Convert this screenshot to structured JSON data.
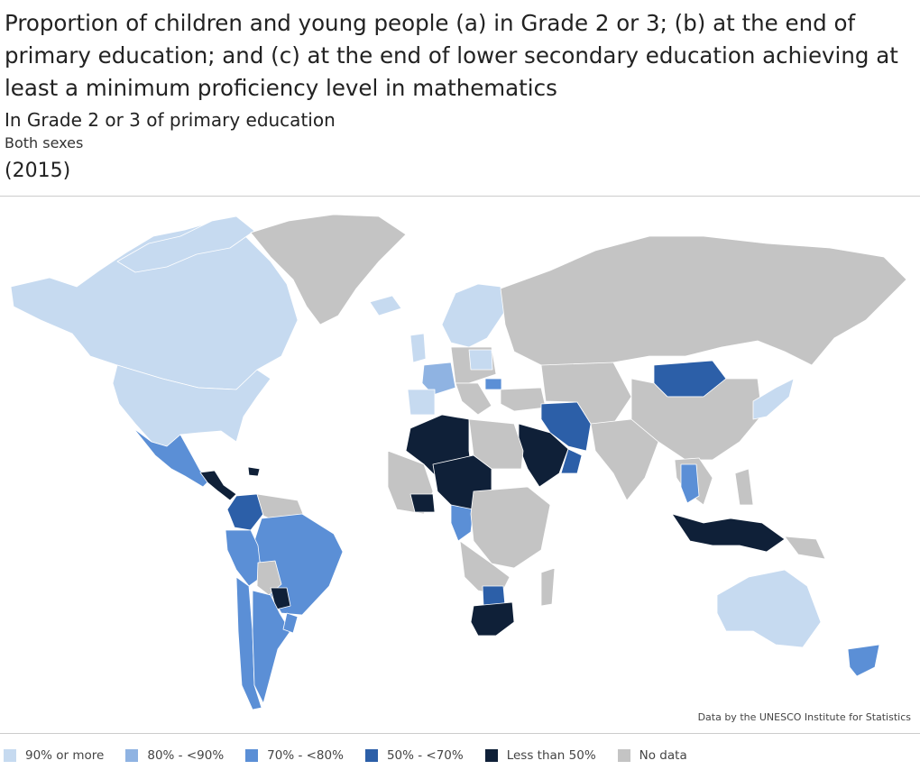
{
  "header": {
    "title": "Proportion of children and young people (a) in Grade 2 or 3; (b) at the end of primary education; and (c) at the end of lower secondary education achieving at least a minimum proficiency level in mathematics",
    "subtitle": "In Grade 2 or 3 of primary education",
    "sex": "Both sexes",
    "year": "(2015)"
  },
  "map": {
    "colors": {
      "ocean": "#ffffff",
      "border": "#ffffff",
      "c90": "#c6daf0",
      "c80": "#8fb3e2",
      "c70": "#5b8fd6",
      "c50": "#2c5fa8",
      "c0": "#0f2038",
      "nodata": "#c4c4c4"
    },
    "credit": "Data by the UNESCO Institute for Statistics"
  },
  "legend": [
    {
      "label": "90% or more",
      "color": "#c6daf0"
    },
    {
      "label": "80% - <90%",
      "color": "#8fb3e2"
    },
    {
      "label": "70% - <80%",
      "color": "#5b8fd6"
    },
    {
      "label": "50% - <70%",
      "color": "#2c5fa8"
    },
    {
      "label": "Less than 50%",
      "color": "#0f2038"
    },
    {
      "label": "No data",
      "color": "#c4c4c4"
    }
  ]
}
